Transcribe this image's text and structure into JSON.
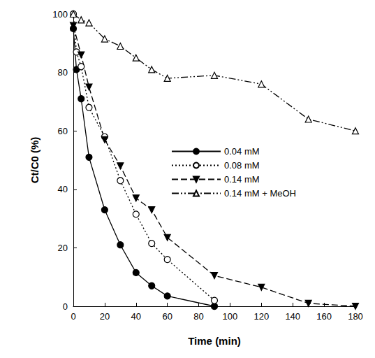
{
  "chart_data": {
    "type": "line",
    "x_label": "Time (min)",
    "y_label": "Ct/C0 (%)",
    "xlim": [
      0,
      180
    ],
    "xticks": [
      0,
      20,
      40,
      60,
      80,
      100,
      120,
      140,
      160,
      180
    ],
    "ylim": [
      0,
      100
    ],
    "yticks": [
      0,
      20,
      40,
      60,
      80,
      100
    ],
    "grid": false,
    "legend": "right",
    "series": [
      {
        "name": "0.04 mM",
        "color": "#000000",
        "marker": "circle",
        "line_style": "solid",
        "x": [
          0,
          2,
          5,
          10,
          20,
          30,
          40,
          50,
          60,
          90
        ],
        "values": [
          95,
          81,
          71,
          51,
          33,
          21,
          11.5,
          7,
          3.5,
          0
        ]
      },
      {
        "name": "0.08 mM",
        "color": "#000000",
        "marker": "open circle",
        "line_style": "dotted",
        "x": [
          0,
          2,
          5,
          10,
          20,
          30,
          40,
          50,
          60,
          90
        ],
        "values": [
          100,
          87,
          82,
          68,
          58,
          43,
          31.5,
          21.5,
          16,
          2
        ]
      },
      {
        "name": "0.14 mM",
        "color": "#000000",
        "marker": "triangle-down",
        "line_style": "dashed",
        "x": [
          0,
          5,
          10,
          20,
          30,
          40,
          50,
          60,
          90,
          120,
          150,
          180
        ],
        "values": [
          96,
          86,
          75,
          57,
          48,
          37,
          33,
          23.5,
          10.5,
          6.5,
          1,
          0
        ]
      },
      {
        "name": "0.14 mM + MeOH",
        "color": "#000000",
        "marker": "open triangle-up",
        "line_style": "dashdot",
        "x": [
          0,
          5,
          10,
          20,
          30,
          40,
          50,
          60,
          90,
          120,
          150,
          180
        ],
        "values": [
          100,
          98,
          97,
          91.5,
          89,
          85,
          81,
          78,
          79,
          76,
          64,
          60
        ]
      }
    ]
  }
}
